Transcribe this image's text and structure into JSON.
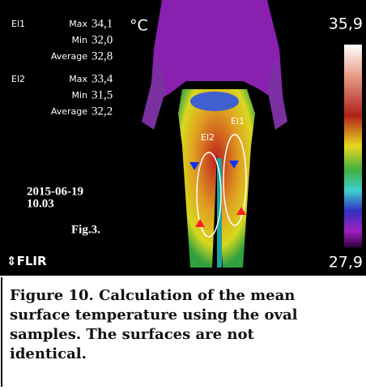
{
  "readouts": [
    {
      "label": "El1",
      "rows": [
        {
          "stat": "Max",
          "value": "34,1"
        },
        {
          "stat": "Min",
          "value": "32,0"
        },
        {
          "stat": "Average",
          "value": "32,8"
        }
      ]
    },
    {
      "label": "El2",
      "rows": [
        {
          "stat": "Max",
          "value": "33,4"
        },
        {
          "stat": "Min",
          "value": "31,5"
        },
        {
          "stat": "Average",
          "value": "32,2"
        }
      ]
    }
  ],
  "unit": "°C",
  "date": "2015-06-19",
  "time": "10.03",
  "fig_label": "Fig.3.",
  "brand": "FLIR",
  "scale": {
    "max": "35,9",
    "min": "27,9"
  },
  "ellipse_labels": [
    "El1",
    "El2"
  ],
  "caption": [
    "Figure 10. Calculation of the mean",
    "surface temperature using the oval",
    "samples. The surfaces are not",
    "identical."
  ]
}
